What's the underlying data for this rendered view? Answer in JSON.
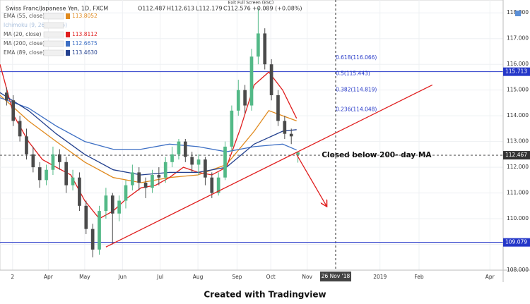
{
  "chart_data": {
    "type": "candlestick",
    "header": {
      "symbol": "Swiss Franc/Japanese Yen, 1D, FXCM",
      "open": "O112.487",
      "high": "H112.613",
      "low": "L112.179",
      "close": "C112.576",
      "change": "+0.089 (+0.08%)"
    },
    "exit_hint": "Exit Full Screen (ESC)",
    "footer": "Created with Tradingview",
    "up_color": "#53b987",
    "down_color": "#4a4a4a",
    "xlim": [
      -1,
      75
    ],
    "ylim": [
      108,
      118.5
    ],
    "yticks": [
      {
        "value": 108,
        "label": "108.000"
      },
      {
        "value": 109,
        "label": "109.000"
      },
      {
        "value": 110,
        "label": "110.000"
      },
      {
        "value": 111,
        "label": "111.000"
      },
      {
        "value": 112,
        "label": "112.000"
      },
      {
        "value": 113,
        "label": "113.000"
      },
      {
        "value": 114,
        "label": "114.000"
      },
      {
        "value": 115,
        "label": "115.000"
      },
      {
        "value": 116,
        "label": "116.000"
      },
      {
        "value": 117,
        "label": "117.000"
      },
      {
        "value": 118,
        "label": "118.000"
      }
    ],
    "xticks": [
      {
        "value": 0.9,
        "label": "2"
      },
      {
        "value": 6.3,
        "label": "Apr"
      },
      {
        "value": 11.8,
        "label": "May"
      },
      {
        "value": 17.5,
        "label": "Jun"
      },
      {
        "value": 23.2,
        "label": "Jul"
      },
      {
        "value": 28.9,
        "label": "Aug"
      },
      {
        "value": 34.8,
        "label": "Sep"
      },
      {
        "value": 39.9,
        "label": "Oct"
      },
      {
        "value": 45.4,
        "label": "Nov"
      },
      {
        "value": 56.4,
        "label": "2019"
      },
      {
        "value": 62.3,
        "label": "Feb"
      },
      {
        "value": 73,
        "label": "Apr"
      }
    ],
    "crosshair_x": {
      "value": 49.7,
      "label": "26 Nov '18"
    },
    "ohlc": [
      [
        114.9,
        115.1,
        114.4,
        114.6
      ],
      [
        114.6,
        114.8,
        113.6,
        113.8
      ],
      [
        113.8,
        114.0,
        113.0,
        113.2
      ],
      [
        113.2,
        113.5,
        112.3,
        112.5
      ],
      [
        112.5,
        112.8,
        111.8,
        112.0
      ],
      [
        112.0,
        112.2,
        111.2,
        111.5
      ],
      [
        111.5,
        112.1,
        111.3,
        111.9
      ],
      [
        111.9,
        112.8,
        111.7,
        112.5
      ],
      [
        112.5,
        112.7,
        111.9,
        112.2
      ],
      [
        112.2,
        112.4,
        111.0,
        111.3
      ],
      [
        111.3,
        111.9,
        111.1,
        111.6
      ],
      [
        111.6,
        111.8,
        110.3,
        110.5
      ],
      [
        110.5,
        110.7,
        109.4,
        109.6
      ],
      [
        109.6,
        109.8,
        108.5,
        108.8
      ],
      [
        108.8,
        110.5,
        108.6,
        110.3
      ],
      [
        110.3,
        111.2,
        110.0,
        110.9
      ],
      [
        110.9,
        111.0,
        109.0,
        110.2
      ],
      [
        110.2,
        110.9,
        109.9,
        110.7
      ],
      [
        110.7,
        111.5,
        110.4,
        111.3
      ],
      [
        111.3,
        112.1,
        111.1,
        111.8
      ],
      [
        111.8,
        112.0,
        111.1,
        111.4
      ],
      [
        111.4,
        111.6,
        110.8,
        111.2
      ],
      [
        111.2,
        111.9,
        111.0,
        111.7
      ],
      [
        111.7,
        112.0,
        111.3,
        111.6
      ],
      [
        111.6,
        112.4,
        111.4,
        112.2
      ],
      [
        112.2,
        112.8,
        112.0,
        112.5
      ],
      [
        112.5,
        113.1,
        112.3,
        113.0
      ],
      [
        113.0,
        113.1,
        112.2,
        112.4
      ],
      [
        112.4,
        112.6,
        111.8,
        112.1
      ],
      [
        112.1,
        112.5,
        111.7,
        112.3
      ],
      [
        112.3,
        112.4,
        111.3,
        111.6
      ],
      [
        111.6,
        111.8,
        110.8,
        111.0
      ],
      [
        111.0,
        111.8,
        110.9,
        111.6
      ],
      [
        111.6,
        113.0,
        111.5,
        112.8
      ],
      [
        112.8,
        114.4,
        112.6,
        114.2
      ],
      [
        114.2,
        115.4,
        114.0,
        115.0
      ],
      [
        115.0,
        115.2,
        114.1,
        114.4
      ],
      [
        114.4,
        116.6,
        114.2,
        116.3
      ],
      [
        116.3,
        118.2,
        116.0,
        117.2
      ],
      [
        117.2,
        117.4,
        115.8,
        116.0
      ],
      [
        116.0,
        116.2,
        114.6,
        114.8
      ],
      [
        114.8,
        115.0,
        113.6,
        113.8
      ],
      [
        113.8,
        114.0,
        113.1,
        113.3
      ],
      [
        113.3,
        113.5,
        112.9,
        113.2
      ],
      [
        112.487,
        112.613,
        112.179,
        112.576
      ]
    ],
    "series": [
      {
        "name": "EMA (55, close)",
        "legend_value": "113.8052",
        "color": "#e08a1e",
        "x": [
          -1,
          3.3,
          7.5,
          11.8,
          16.1,
          20.3,
          24.6,
          28.9,
          33.2,
          37.4,
          39.6,
          41.7,
          43.8
        ],
        "values": [
          114.8,
          113.8,
          113.0,
          112.2,
          111.6,
          111.4,
          111.6,
          111.7,
          112.1,
          113.4,
          114.2,
          114.0,
          113.8
        ]
      },
      {
        "name": "Ichimoku (9, 26, 52, 26)",
        "color": "#9bb5d6"
      },
      {
        "name": "MA (20, close)",
        "legend_value": "113.8112",
        "color": "#e01e1e",
        "x": [
          -1,
          1.1,
          3.3,
          5.4,
          7.5,
          9.7,
          11.8,
          14,
          16.1,
          18.2,
          20.3,
          22.5,
          24.6,
          26.7,
          28.9,
          31,
          33.2,
          35.3,
          37.4,
          39.6,
          41.7,
          43.8
        ],
        "values": [
          116,
          114,
          113,
          112.3,
          112,
          111.7,
          110.7,
          110,
          110.3,
          110.8,
          111.2,
          111.3,
          111.6,
          112,
          111.8,
          111.7,
          112,
          113.5,
          115.2,
          115.7,
          115,
          113.9
        ]
      },
      {
        "name": "MA (200, close)",
        "legend_value": "112.6675",
        "color": "#3d6fc4",
        "x": [
          -1,
          3.3,
          7.5,
          11.8,
          16.1,
          20.3,
          24.6,
          28.9,
          33.2,
          37.4,
          41.7,
          43.8
        ],
        "values": [
          114.7,
          114.3,
          113.6,
          113.0,
          112.7,
          112.7,
          112.9,
          112.8,
          112.6,
          112.8,
          112.9,
          112.67
        ]
      },
      {
        "name": "EMA (89, close)",
        "legend_value": "113.4630",
        "color": "#23408e",
        "x": [
          -1,
          3.3,
          7.5,
          11.8,
          16.1,
          20.3,
          24.6,
          28.9,
          33.2,
          37.4,
          41.7,
          43.8
        ],
        "values": [
          114.9,
          114.2,
          113.3,
          112.5,
          111.9,
          111.7,
          111.8,
          111.8,
          112.0,
          112.9,
          113.4,
          113.46
        ]
      }
    ],
    "price_lines": [
      {
        "value": 115.713,
        "color": "#2437c8",
        "style": "solid"
      },
      {
        "value": 109.079,
        "color": "#2437c8",
        "style": "solid"
      },
      {
        "value": 112.467,
        "color": "#333333",
        "style": "dashed"
      }
    ],
    "fib_labels": [
      {
        "value": 116.066,
        "label": "0.618(116.066)"
      },
      {
        "value": 115.443,
        "label": "0.5(115.443)"
      },
      {
        "value": 114.819,
        "label": "0.382(114.819)"
      },
      {
        "value": 114.048,
        "label": "0.236(114.048)"
      }
    ],
    "trend_line": {
      "color": "#e01e1e",
      "x": [
        15,
        64.3
      ],
      "values": [
        108.9,
        115.2
      ]
    },
    "arrow": {
      "color": "#e01e1e",
      "x": [
        43.8,
        48.3
      ],
      "values": [
        112.5,
        110.5
      ]
    },
    "annotation": {
      "label": "Closed below 200- day MA",
      "x": 47.6,
      "value": 112.47
    }
  }
}
